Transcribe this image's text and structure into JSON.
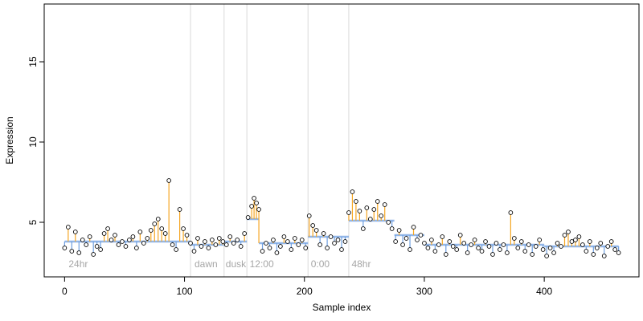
{
  "chart_data": {
    "type": "scatter",
    "title": "",
    "xlabel": "Sample index",
    "ylabel": "Expression",
    "xlim": [
      -17,
      479
    ],
    "ylim": [
      1.6,
      18.6
    ],
    "x_ticks": [
      0,
      100,
      200,
      300,
      400
    ],
    "x_tick_labels": [
      "0",
      "100",
      "200",
      "300",
      "400"
    ],
    "y_ticks": [
      5,
      10,
      15
    ],
    "y_tick_labels": [
      "5",
      "10",
      "15"
    ],
    "grid": false,
    "legend": "none",
    "colors": {
      "points_edge": "#000000",
      "points_fill": "#ffffff",
      "residual_up": "#f5a623",
      "residual_down": "#6f9fe0",
      "segment_boundary": "#d9d9d9",
      "segment_label": "#a6a6a6"
    },
    "segment_boundaries": [
      105,
      133,
      152,
      203,
      237
    ],
    "segment_labels": [
      {
        "x": 2,
        "text": "24hr"
      },
      {
        "x": 107,
        "text": "dawn"
      },
      {
        "x": 133,
        "text": "dusk"
      },
      {
        "x": 153,
        "text": "12:00"
      },
      {
        "x": 204,
        "text": "0:00"
      },
      {
        "x": 238,
        "text": "48hr"
      }
    ],
    "fitted_levels": [
      {
        "x_start": 0,
        "x_end": 105,
        "y": 3.8
      },
      {
        "x_start": 105,
        "x_end": 133,
        "y": 3.6
      },
      {
        "x_start": 133,
        "x_end": 152,
        "y": 3.8
      },
      {
        "x_start": 152,
        "x_end": 162,
        "y": 5.2
      },
      {
        "x_start": 162,
        "x_end": 203,
        "y": 3.7
      },
      {
        "x_start": 203,
        "x_end": 237,
        "y": 4.1
      },
      {
        "x_start": 237,
        "x_end": 275,
        "y": 5.1
      },
      {
        "x_start": 275,
        "x_end": 300,
        "y": 4.2
      },
      {
        "x_start": 300,
        "x_end": 400,
        "y": 3.6
      },
      {
        "x_start": 400,
        "x_end": 462,
        "y": 3.5
      }
    ],
    "series": [
      {
        "x": [
          0,
          3,
          6,
          9,
          12,
          15,
          18,
          21,
          24,
          27,
          30,
          33,
          36,
          39,
          42,
          45,
          48,
          51,
          54,
          57,
          60,
          63,
          66,
          69,
          72,
          75,
          78,
          81,
          84,
          87,
          90,
          93,
          96,
          99,
          102,
          105,
          108,
          111,
          114,
          117,
          120,
          123,
          126,
          129,
          132,
          135,
          138,
          141,
          144,
          147,
          150,
          153,
          156,
          158,
          160,
          162,
          165,
          168,
          171,
          174,
          177,
          180,
          183,
          186,
          189,
          192,
          195,
          198,
          201,
          204,
          207,
          210,
          213,
          216,
          219,
          222,
          225,
          228,
          231,
          234,
          237,
          240,
          243,
          246,
          249,
          252,
          255,
          258,
          261,
          264,
          267,
          270,
          273,
          276,
          279,
          282,
          285,
          288,
          291,
          294,
          297,
          300,
          303,
          306,
          309,
          312,
          315,
          318,
          321,
          324,
          327,
          330,
          333,
          336,
          339,
          342,
          345,
          348,
          351,
          354,
          357,
          360,
          363,
          366,
          369,
          372,
          375,
          378,
          381,
          384,
          387,
          390,
          393,
          396,
          399,
          402,
          405,
          408,
          411,
          414,
          417,
          420,
          423,
          426,
          429,
          432,
          435,
          438,
          441,
          444,
          447,
          450,
          453,
          456,
          459,
          462
        ],
        "y": [
          3.4,
          4.7,
          3.2,
          4.4,
          3.1,
          3.9,
          3.6,
          4.1,
          3.0,
          3.5,
          3.3,
          4.3,
          4.6,
          3.9,
          4.2,
          3.6,
          3.8,
          3.5,
          3.9,
          4.1,
          3.4,
          4.4,
          3.7,
          4.0,
          4.5,
          4.9,
          5.2,
          4.6,
          4.3,
          7.6,
          3.6,
          3.3,
          5.8,
          4.6,
          4.2,
          3.7,
          3.2,
          4.0,
          3.5,
          3.8,
          3.4,
          3.9,
          3.6,
          4.0,
          3.8,
          3.6,
          4.1,
          3.7,
          3.9,
          3.5,
          4.3,
          5.3,
          6.0,
          6.5,
          6.2,
          5.8,
          3.2,
          3.7,
          3.4,
          3.9,
          3.1,
          3.5,
          4.1,
          3.8,
          3.3,
          4.0,
          3.6,
          3.9,
          3.4,
          5.4,
          4.8,
          4.5,
          3.6,
          4.3,
          3.4,
          4.1,
          3.7,
          3.9,
          3.3,
          3.8,
          5.6,
          6.9,
          6.3,
          5.7,
          4.6,
          5.9,
          5.2,
          5.8,
          6.3,
          5.4,
          6.1,
          5.0,
          4.6,
          3.8,
          4.5,
          3.6,
          4.0,
          3.3,
          4.7,
          3.9,
          4.2,
          3.7,
          3.4,
          3.9,
          3.2,
          3.6,
          4.1,
          3.0,
          3.8,
          3.5,
          3.3,
          4.2,
          3.7,
          3.1,
          3.6,
          3.9,
          3.4,
          3.2,
          3.8,
          3.5,
          3.0,
          3.7,
          3.3,
          3.6,
          3.1,
          5.6,
          4.0,
          3.4,
          3.8,
          3.2,
          3.6,
          3.0,
          3.5,
          3.9,
          3.3,
          2.9,
          3.4,
          3.1,
          3.7,
          3.5,
          4.2,
          4.4,
          3.8,
          3.9,
          4.1,
          3.6,
          3.2,
          3.8,
          3.0,
          3.4,
          3.7,
          2.9,
          3.5,
          3.8,
          3.3,
          3.1
        ]
      }
    ]
  }
}
